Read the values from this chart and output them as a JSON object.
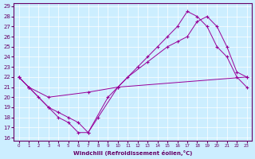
{
  "xlabel": "Windchill (Refroidissement éolien,°C)",
  "bg_color": "#cceeff",
  "line_color": "#990099",
  "xlim": [
    -0.5,
    23.5
  ],
  "ylim": [
    15.7,
    29.3
  ],
  "xticks": [
    0,
    1,
    2,
    3,
    4,
    5,
    6,
    7,
    8,
    9,
    10,
    11,
    12,
    13,
    14,
    15,
    16,
    17,
    18,
    19,
    20,
    21,
    22,
    23
  ],
  "yticks": [
    16,
    17,
    18,
    19,
    20,
    21,
    22,
    23,
    24,
    25,
    26,
    27,
    28,
    29
  ],
  "line1_x": [
    0,
    1,
    3,
    7,
    10,
    23
  ],
  "line1_y": [
    22,
    21,
    20,
    20.5,
    21,
    22
  ],
  "line2_x": [
    0,
    1,
    3,
    4,
    5,
    6,
    7,
    8,
    10,
    12,
    13,
    14,
    15,
    16,
    17,
    18,
    19,
    20,
    21,
    22,
    23
  ],
  "line2_y": [
    22,
    21,
    19,
    18,
    17.5,
    16.5,
    16.5,
    18,
    21,
    23,
    24,
    25,
    26,
    27,
    28.5,
    28,
    27,
    25,
    24,
    22,
    21
  ],
  "line3_x": [
    0,
    1,
    2,
    3,
    4,
    5,
    6,
    7,
    9,
    11,
    13,
    15,
    16,
    17,
    18,
    19,
    20,
    21,
    22,
    23
  ],
  "line3_y": [
    22,
    21,
    20,
    19,
    18.5,
    18,
    17.5,
    16.5,
    20,
    22,
    23.5,
    25,
    25.5,
    26,
    27.5,
    28,
    27,
    25,
    22.5,
    22
  ]
}
